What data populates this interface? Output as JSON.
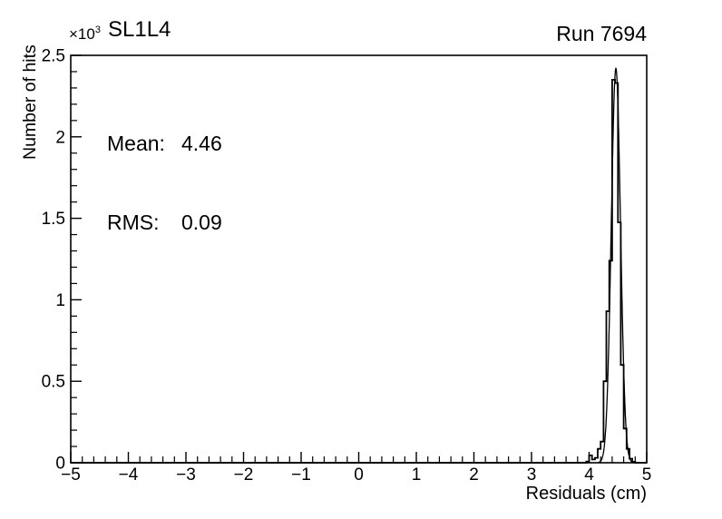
{
  "chart_data": {
    "type": "histogram",
    "title": "SL1L4",
    "run_label": "Run 7694",
    "scale_base": "×10",
    "scale_exponent": "3",
    "stats": [
      {
        "label": "Mean:",
        "value": "4.46"
      },
      {
        "label": "RMS:",
        "value": "0.09"
      }
    ],
    "xlabel": "Residuals (cm)",
    "ylabel": "Number of hits",
    "xlim": [
      -5,
      5
    ],
    "ylim": [
      0,
      2500
    ],
    "x_major_ticks": [
      -5,
      -4,
      -3,
      -2,
      -1,
      0,
      1,
      2,
      3,
      4,
      5
    ],
    "x_tick_labels": [
      "−5",
      "−4",
      "−3",
      "−2",
      "−1",
      "0",
      "1",
      "2",
      "3",
      "4",
      "5"
    ],
    "x_minor_step": 0.2,
    "y_major_ticks": [
      0,
      500,
      1000,
      1500,
      2000,
      2500
    ],
    "y_tick_labels": [
      "0",
      "0.5",
      "1",
      "1.5",
      "2",
      "2.5"
    ],
    "y_minor_step": 100,
    "grid": false,
    "legend": "none",
    "bin_width": 0.05,
    "bins": [
      [
        3.95,
        8
      ],
      [
        4.0,
        45
      ],
      [
        4.05,
        20
      ],
      [
        4.1,
        30
      ],
      [
        4.15,
        85
      ],
      [
        4.2,
        130
      ],
      [
        4.25,
        500
      ],
      [
        4.3,
        930
      ],
      [
        4.35,
        1240
      ],
      [
        4.4,
        2350
      ],
      [
        4.45,
        2330
      ],
      [
        4.5,
        1475
      ],
      [
        4.55,
        600
      ],
      [
        4.6,
        210
      ],
      [
        4.65,
        85
      ],
      [
        4.7,
        25
      ],
      [
        4.75,
        6
      ]
    ],
    "fit": {
      "type": "gaussian",
      "amplitude": 2420,
      "mean": 4.465,
      "sigma": 0.08
    },
    "colors": {
      "line": "#000000",
      "text": "#000000",
      "background": "#ffffff"
    }
  }
}
